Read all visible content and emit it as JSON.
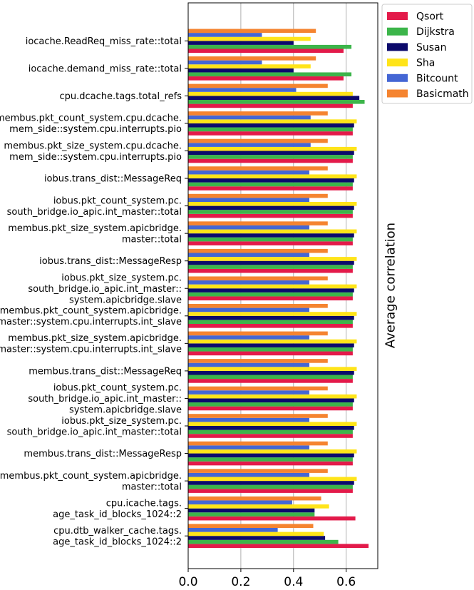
{
  "chart_data": {
    "type": "bar",
    "orientation": "horizontal",
    "xlabel": "",
    "ylabel": "Average correlation",
    "xlim": [
      0,
      0.72
    ],
    "xticks": [
      "0.0",
      "0.2",
      "0.4",
      "0.6"
    ],
    "grid": "vertical",
    "legend_position": "top-right outside",
    "categories": [
      [
        "iocache.ReadReq_miss_rate::total"
      ],
      [
        "iocache.demand_miss_rate::total"
      ],
      [
        "cpu.dcache.tags.total_refs"
      ],
      [
        "membus.pkt_count_system.cpu.dcache.",
        "mem_side::system.cpu.interrupts.pio"
      ],
      [
        "membus.pkt_size_system.cpu.dcache.",
        "mem_side::system.cpu.interrupts.pio"
      ],
      [
        "iobus.trans_dist::MessageReq"
      ],
      [
        "iobus.pkt_count_system.pc.",
        "south_bridge.io_apic.int_master::total"
      ],
      [
        "membus.pkt_size_system.apicbridge.",
        "master::total"
      ],
      [
        "iobus.trans_dist::MessageResp"
      ],
      [
        "iobus.pkt_size_system.pc.",
        "south_bridge.io_apic.int_master::",
        "system.apicbridge.slave"
      ],
      [
        "membus.pkt_count_system.apicbridge.",
        "master::system.cpu.interrupts.int_slave"
      ],
      [
        "membus.pkt_size_system.apicbridge.",
        "master::system.cpu.interrupts.int_slave"
      ],
      [
        "membus.trans_dist::MessageReq"
      ],
      [
        "iobus.pkt_count_system.pc.",
        "south_bridge.io_apic.int_master::",
        "system.apicbridge.slave"
      ],
      [
        "iobus.pkt_size_system.pc.",
        "south_bridge.io_apic.int_master::total"
      ],
      [
        "membus.trans_dist::MessageResp"
      ],
      [
        "membus.pkt_count_system.apicbridge.",
        "master::total"
      ],
      [
        "cpu.icache.tags.",
        "age_task_id_blocks_1024::2"
      ],
      [
        "cpu.dtb_walker_cache.tags.",
        "age_task_id_blocks_1024::2"
      ]
    ],
    "series": [
      {
        "name": "Qsort",
        "color": "#e31a4a",
        "values": [
          0.59,
          0.59,
          0.625,
          0.625,
          0.625,
          0.625,
          0.625,
          0.625,
          0.625,
          0.625,
          0.625,
          0.625,
          0.625,
          0.625,
          0.625,
          0.625,
          0.625,
          0.635,
          0.685
        ]
      },
      {
        "name": "Dijkstra",
        "color": "#3cb54a",
        "values": [
          0.62,
          0.62,
          0.67,
          0.625,
          0.625,
          0.625,
          0.625,
          0.625,
          0.625,
          0.625,
          0.625,
          0.625,
          0.625,
          0.625,
          0.625,
          0.625,
          0.625,
          0.48,
          0.57
        ]
      },
      {
        "name": "Susan",
        "color": "#0c0a6b",
        "values": [
          0.4,
          0.4,
          0.65,
          0.63,
          0.63,
          0.63,
          0.63,
          0.63,
          0.63,
          0.63,
          0.63,
          0.63,
          0.63,
          0.63,
          0.63,
          0.63,
          0.63,
          0.48,
          0.52
        ]
      },
      {
        "name": "Sha",
        "color": "#ffe419",
        "values": [
          0.465,
          0.465,
          0.625,
          0.64,
          0.64,
          0.64,
          0.64,
          0.64,
          0.64,
          0.64,
          0.64,
          0.64,
          0.64,
          0.64,
          0.64,
          0.64,
          0.64,
          0.535,
          0.515
        ]
      },
      {
        "name": "Bitcount",
        "color": "#4466d4",
        "values": [
          0.28,
          0.28,
          0.41,
          0.465,
          0.465,
          0.46,
          0.46,
          0.46,
          0.46,
          0.46,
          0.46,
          0.46,
          0.46,
          0.46,
          0.46,
          0.46,
          0.46,
          0.395,
          0.34
        ]
      },
      {
        "name": "Basicmath",
        "color": "#f58430",
        "values": [
          0.485,
          0.485,
          0.53,
          0.53,
          0.53,
          0.53,
          0.53,
          0.53,
          0.53,
          0.53,
          0.53,
          0.53,
          0.53,
          0.53,
          0.53,
          0.53,
          0.53,
          0.505,
          0.475
        ]
      }
    ]
  }
}
